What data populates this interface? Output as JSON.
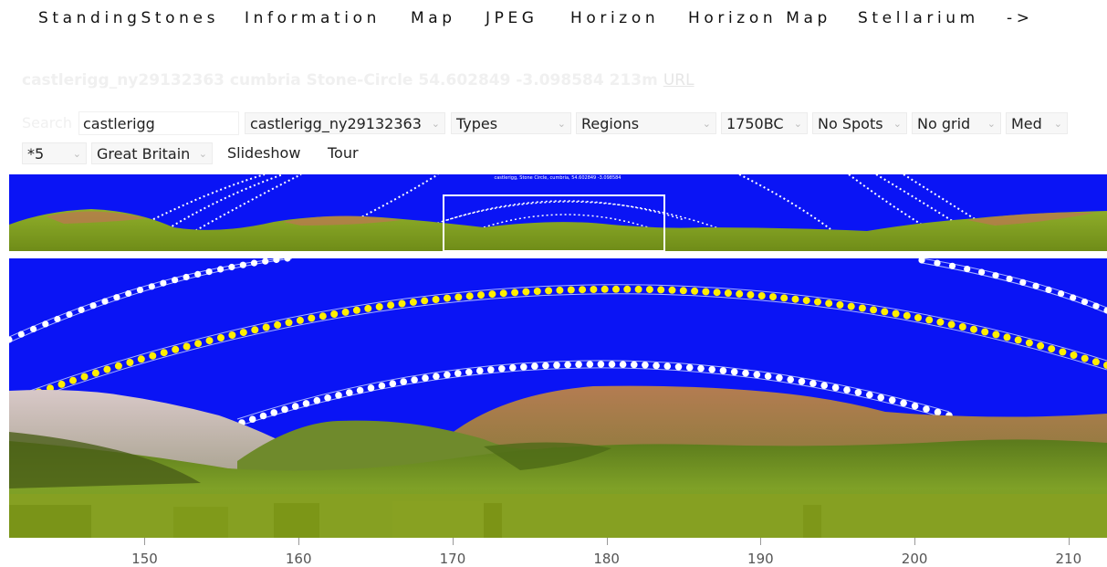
{
  "nav": [
    {
      "label": "StandingStones"
    },
    {
      "label": "Information"
    },
    {
      "label": "Map"
    },
    {
      "label": "JPEG"
    },
    {
      "label": "Horizon"
    },
    {
      "label": "Horizon Map"
    },
    {
      "label": "Stellarium"
    },
    {
      "label": "->"
    }
  ],
  "site": {
    "title": "castlerigg_ny29132363 cumbria Stone-Circle 54.602849 -3.098584 213m",
    "url_label": "URL"
  },
  "controls": {
    "search_label": "Search",
    "search_value": "castlerigg",
    "site_select": "castlerigg_ny29132363",
    "types_select": "Types",
    "regions_select": "Regions",
    "date_select": "1750BC",
    "spots_select": "No Spots",
    "grid_select": "No grid",
    "quality_select": "Med",
    "zoom_select": "*5",
    "country_select": "Great Britain",
    "slideshow_label": "Slideshow",
    "tour_label": "Tour"
  },
  "panorama": {
    "caption": "castlerigg, Stone Circle, cumbria, 54.602849 -3.098584",
    "sky_color": "#0a14f5",
    "sun_color": "#ffee00",
    "moon_color": "#ffffff",
    "ground_color": "#7e9a1e"
  },
  "axis": {
    "ticks": [
      150,
      160,
      170,
      180,
      190,
      200,
      210
    ],
    "min": 141.2,
    "max": 212.5
  }
}
